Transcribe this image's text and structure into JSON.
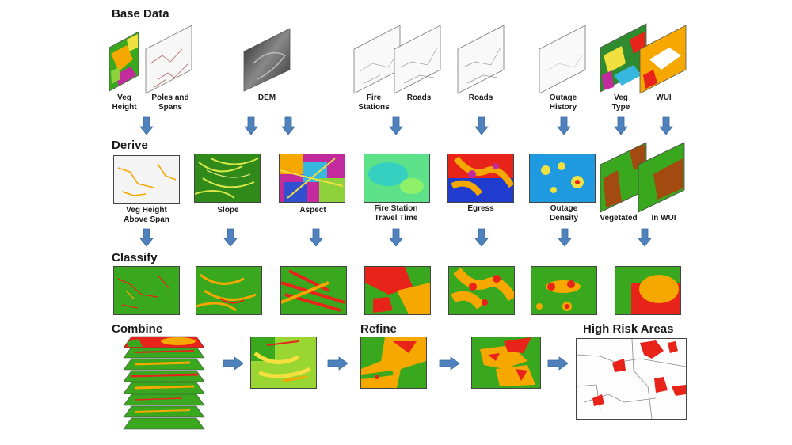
{
  "sections": {
    "base": "Base Data",
    "derive": "Derive",
    "classify": "Classify",
    "combine": "Combine",
    "refine": "Refine",
    "high_risk": "High Risk Areas"
  },
  "base_labels": {
    "veg_height": "Veg\nHeight",
    "poles_spans": "Poles and\nSpans",
    "dem": "DEM",
    "fire_stations": "Fire\nStations",
    "roads1": "Roads",
    "roads2": "Roads",
    "outage_history": "Outage\nHistory",
    "veg_type": "Veg\nType",
    "wui": "WUI"
  },
  "derive_labels": {
    "veg_above_span": "Veg Height\nAbove Span",
    "slope": "Slope",
    "aspect": "Aspect",
    "travel_time": "Fire Station\nTravel Time",
    "egress": "Egress",
    "outage_density": "Outage\nDensity",
    "vegetated": "Vegetated",
    "in_wui": "In WUI"
  },
  "colors": {
    "arrow": "#4f82bd",
    "arrow_stroke": "#3a6a9e",
    "green": "#3aa81e",
    "orange": "#f6a800",
    "red": "#e8241a",
    "brown": "#a34a10"
  }
}
